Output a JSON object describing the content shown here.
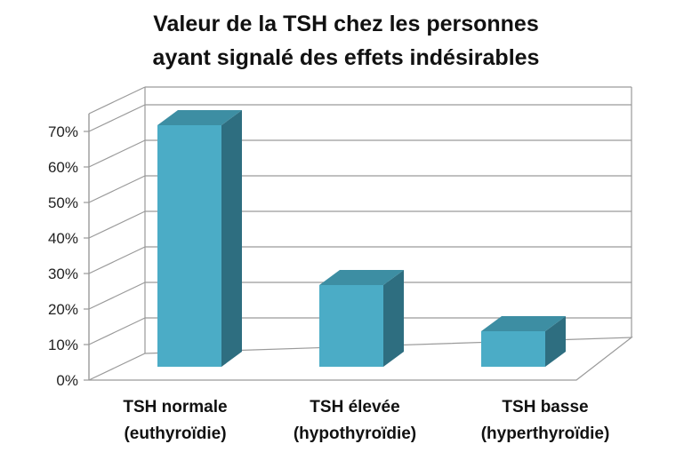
{
  "title_line1": "Valeur de la TSH chez les personnes",
  "title_line2": "ayant signalé des effets indésirables",
  "chart_data": {
    "type": "bar",
    "title": "Valeur de la TSH chez les personnes ayant signalé des effets indésirables",
    "categories": [
      [
        "TSH normale",
        "(euthyroïdie)"
      ],
      [
        "TSH élevée",
        "(hypothyroïdie)"
      ],
      [
        "TSH basse",
        "(hyperthyroïdie)"
      ]
    ],
    "values": [
      68,
      23,
      10
    ],
    "ylim": [
      0,
      70
    ],
    "yticks": [
      "0%",
      "10%",
      "20%",
      "30%",
      "40%",
      "50%",
      "60%",
      "70%"
    ],
    "ytick_values": [
      0,
      10,
      20,
      30,
      40,
      50,
      60,
      70
    ],
    "grid": true,
    "style": "3d",
    "colors": {
      "bar_front": "#4bacc6",
      "bar_top": "#3d8ea3",
      "bar_side": "#2e6e80",
      "grid": "#9a9a9a"
    }
  }
}
